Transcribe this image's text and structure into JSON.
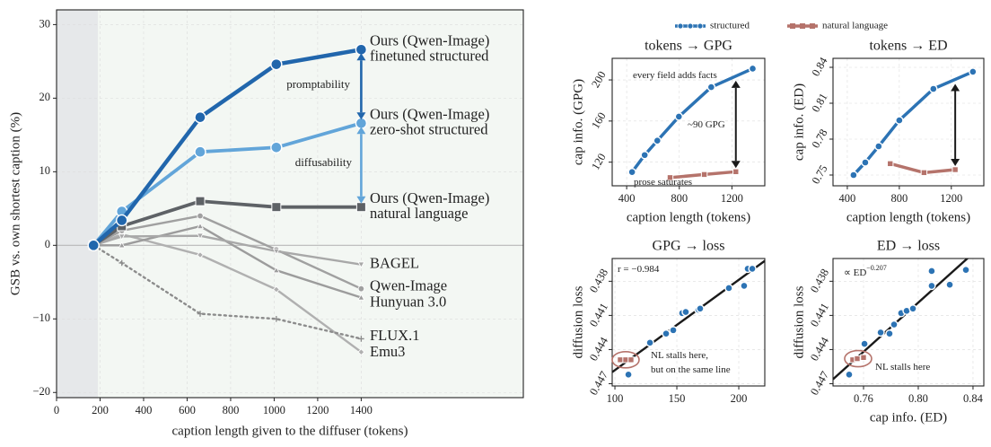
{
  "legend": [
    {
      "name": "structured",
      "color": "#2c73b4"
    },
    {
      "name": "natural language",
      "color": "#b5736b"
    }
  ],
  "chart_data": [
    {
      "type": "line",
      "ylabel": "GSB vs. own shortest caption  (%)",
      "xlabel": "caption length given to the diffuser  (tokens)",
      "xlim": [
        0,
        2145
      ],
      "ylim": [
        -20.7,
        32
      ],
      "xticks": [
        0,
        200,
        400,
        600,
        800,
        1000,
        1200,
        1400
      ],
      "yticks": [
        {
          "value": -20,
          "label": "−20"
        },
        {
          "value": -10,
          "label": "−10"
        },
        0,
        10,
        20,
        30
      ],
      "grid": true,
      "zero_line": true,
      "shaded_xspan": [
        0,
        190
      ],
      "compare_arrows": true,
      "x": [
        170,
        300,
        660,
        1010,
        1400
      ],
      "series": [
        {
          "name": [
            "Ours (Qwen-Image)",
            "finetuned structured"
          ],
          "color": "#2166ac",
          "label_color": "#2166ac",
          "marker": "circle",
          "values": [
            0,
            3.4,
            17.4,
            24.6,
            26.6
          ]
        },
        {
          "name": [
            "Ours (Qwen-Image)",
            "zero-shot structured"
          ],
          "color": "#62a5d9",
          "label_color": "#5aa0d6",
          "marker": "circle",
          "values": [
            0,
            4.6,
            12.7,
            13.3,
            16.6
          ]
        },
        {
          "name": [
            "Ours (Qwen-Image)",
            "natural language"
          ],
          "color": "#5e6266",
          "label_color": "#5e6266",
          "marker": "square",
          "values": [
            0,
            2.6,
            6.0,
            5.2,
            5.2
          ]
        },
        {
          "name": [
            "BAGEL"
          ],
          "color": "#a8a8a8",
          "label_color": "#9a9a9a",
          "marker": "triangle-down",
          "values": [
            0,
            1.2,
            1.3,
            -0.8,
            -2.6
          ]
        },
        {
          "name": [
            "Qwen-Image"
          ],
          "color": "#a0a0a0",
          "label_color": "#7a68a6",
          "marker": "dot",
          "values": [
            0,
            2.0,
            4.0,
            -0.6,
            -5.9
          ]
        },
        {
          "name": [
            "Hunyuan 3.0"
          ],
          "color": "#9c9c9c",
          "label_color": "#5b7b96",
          "marker": "triangle-up",
          "values": [
            0,
            0.0,
            2.6,
            -3.4,
            -7.1
          ]
        },
        {
          "name": [
            "FLUX.1"
          ],
          "color": "#8c8c8c",
          "label_color": "#555555",
          "marker": "plus",
          "linestyle": "dotted",
          "values": [
            0,
            -2.4,
            -9.3,
            -10.0,
            -12.7
          ]
        },
        {
          "name": [
            "Emu3"
          ],
          "color": "#b0b0b0",
          "label_color": "#a8906c",
          "marker": "diamond",
          "values": [
            0,
            1.5,
            -1.3,
            -6.0,
            -14.5
          ]
        }
      ],
      "annotations": [
        "promptability",
        "diffusability"
      ]
    },
    {
      "type": "line",
      "title": "tokens → GPG",
      "xlabel": "caption length  (tokens)",
      "ylabel": "cap info. (GPG)",
      "xlim": [
        290,
        1450
      ],
      "ylim": [
        97,
        221
      ],
      "xticks": [
        400,
        800,
        1200
      ],
      "yticks": [
        120,
        160,
        200
      ],
      "grid": true,
      "compare_arrows": true,
      "series": [
        {
          "color": "#2c73b4",
          "marker": "circle",
          "x": [
            441,
            537,
            633,
            797,
            1043,
            1358
          ],
          "values": [
            110.4,
            126.9,
            140.9,
            164.3,
            193,
            211
          ]
        },
        {
          "color": "#b5736b",
          "marker": "square",
          "x": [
            730,
            990,
            1230
          ],
          "values": [
            105,
            108,
            110.7
          ]
        }
      ],
      "annotations": [
        {
          "text": "every field adds facts",
          "color": "#2c73b4"
        },
        {
          "text": "~90 GPG",
          "color": "#222222"
        },
        {
          "text": "prose saturates",
          "color": "#b5736b"
        }
      ]
    },
    {
      "type": "line",
      "title": "tokens → ED",
      "xlabel": "caption length  (tokens)",
      "ylabel": "cap info. (ED)",
      "xlim": [
        290,
        1450
      ],
      "ylim": [
        0.741,
        0.8475
      ],
      "xticks": [
        400,
        800,
        1200
      ],
      "yticks": [
        0.75,
        0.78,
        0.81,
        0.84
      ],
      "grid": true,
      "compare_arrows": true,
      "series": [
        {
          "color": "#2c73b4",
          "marker": "circle",
          "x": [
            448,
            538,
            641,
            800,
            1062,
            1366
          ],
          "values": [
            0.75,
            0.7605,
            0.774,
            0.7957,
            0.822,
            0.8363
          ]
        },
        {
          "color": "#b5736b",
          "marker": "square",
          "x": [
            730,
            990,
            1230
          ],
          "values": [
            0.7595,
            0.752,
            0.7545
          ]
        }
      ]
    },
    {
      "type": "scatter",
      "title": "GPG → loss",
      "ylabel": "diffusion loss",
      "xlim": [
        97.8,
        221
      ],
      "ylim": [
        0.4472,
        0.436
      ],
      "xticks": [
        100,
        150,
        200
      ],
      "yticks": [
        0.438,
        0.441,
        0.444,
        0.447
      ],
      "grid": true,
      "fit": true,
      "series": [
        {
          "color": "#2c73b4",
          "marker": "circle",
          "x": [
            110.9,
            128.3,
            141.3,
            147.1,
            154.3,
            157.2,
            167.4,
            168.8,
            192.0,
            204.3,
            207.2,
            210.9
          ],
          "values": [
            0.4462,
            0.4434,
            0.4426,
            0.4423,
            0.4408,
            0.4407,
            0.4405,
            0.4404,
            0.4386,
            0.4384,
            0.4369,
            0.4369
          ]
        },
        {
          "color": "#b5736b",
          "marker": "square",
          "x": [
            104.3,
            108.7,
            113.0
          ],
          "values": [
            0.4449,
            0.4449,
            0.4449
          ]
        }
      ],
      "annotations": [
        {
          "text": "r = −0.984",
          "color": "#222222"
        },
        {
          "text": "NL stalls here,",
          "color": "#b5736b"
        },
        {
          "text": "but on the same line",
          "color": "#b5736b"
        }
      ]
    },
    {
      "type": "scatter",
      "title": "ED → loss",
      "xlabel": "cap info. (ED)",
      "ylabel": "diffusion loss",
      "xlim": [
        0.7377,
        0.8479
      ],
      "ylim": [
        0.4472,
        0.436
      ],
      "xticks": [
        0.76,
        {
          "value": 0.8,
          "label": "0.80"
        },
        0.84
      ],
      "yticks": [
        0.438,
        0.441,
        0.444,
        0.447
      ],
      "grid": true,
      "fit": true,
      "series": [
        {
          "color": "#2c73b4",
          "marker": "circle",
          "x": [
            0.7495,
            0.7607,
            0.7725,
            0.779,
            0.7823,
            0.7875,
            0.7915,
            0.7961,
            0.8098,
            0.8098,
            0.823,
            0.8348
          ],
          "values": [
            0.4462,
            0.4435,
            0.4425,
            0.4426,
            0.4418,
            0.4408,
            0.4406,
            0.4404,
            0.4384,
            0.4371,
            0.4383,
            0.437
          ]
        },
        {
          "color": "#b5736b",
          "marker": "square",
          "x": [
            0.7521,
            0.7554,
            0.76
          ],
          "values": [
            0.4449,
            0.4448,
            0.4447
          ]
        }
      ],
      "annotations": [
        {
          "text": "∝ ED",
          "sup": "−0.207",
          "color": "#222222"
        },
        {
          "text": "NL stalls here",
          "color": "#b5736b"
        }
      ]
    }
  ]
}
